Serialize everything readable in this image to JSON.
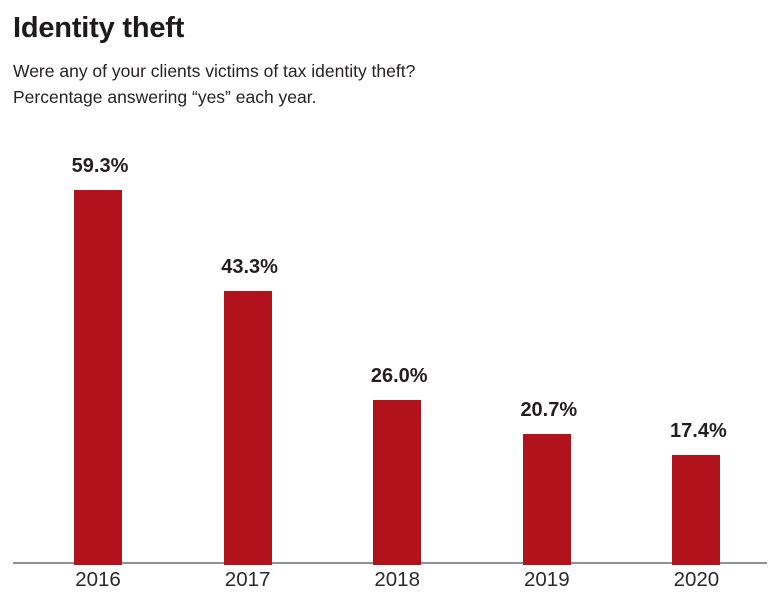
{
  "page": {
    "title": "Identity theft",
    "subtitle_line1": "Were any of your clients victims of tax identity theft?",
    "subtitle_line2": "Percentage answering “yes” each year."
  },
  "chart_data": {
    "type": "bar",
    "title": "Identity theft",
    "subtitle": "Were any of your clients victims of tax identity theft? Percentage answering “yes” each year.",
    "categories": [
      "2016",
      "2017",
      "2018",
      "2019",
      "2020"
    ],
    "values": [
      59.3,
      43.3,
      26.0,
      20.7,
      17.4
    ],
    "value_labels": [
      "59.3%",
      "43.3%",
      "26.0%",
      "20.7%",
      "17.4%"
    ],
    "xlabel": "",
    "ylabel": "",
    "ylim": [
      0,
      65
    ],
    "grid": false,
    "legend": "none",
    "bar_color": "#b1121b",
    "axis_line_color": "#919191",
    "label_color": "#231f20"
  }
}
